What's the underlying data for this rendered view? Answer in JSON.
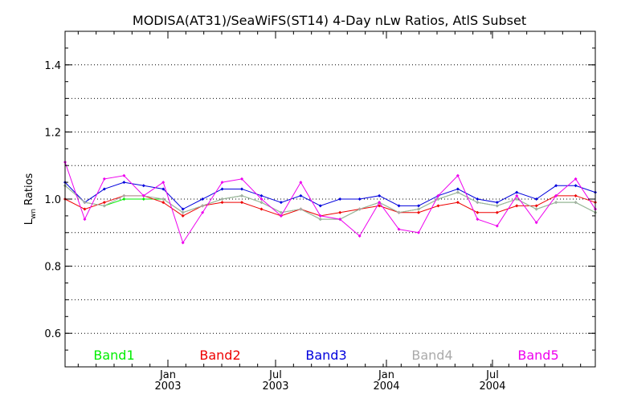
{
  "chart_data": {
    "type": "line",
    "title": "MODISA(AT31)/SeaWiFS(ST14) 4-Day nLw Ratios, AtlS Subset",
    "ylabel_main": "L",
    "ylabel_sub": "wn",
    "ylabel_rest": " Ratios",
    "xlabel": "",
    "ylim": [
      0.5,
      1.5
    ],
    "xlim": [
      0,
      33
    ],
    "grid": "dotted horizontal",
    "y_ticks": [
      "0.6",
      "0.8",
      "1.0",
      "1.2",
      "1.4"
    ],
    "x_ticks": [
      {
        "x": 6.4,
        "month": "Jan",
        "year": "2003"
      },
      {
        "x": 13.1,
        "month": "Jul",
        "year": "2003"
      },
      {
        "x": 20.0,
        "month": "Jan",
        "year": "2004"
      },
      {
        "x": 26.6,
        "month": "Jul",
        "year": "2004"
      }
    ],
    "legend_placement": "bottom",
    "series": [
      {
        "name": "Band1",
        "color": "#00ee00",
        "values": [
          1.04,
          0.99,
          0.98,
          1.0,
          1.0,
          1.0,
          0.96,
          0.98,
          1.0,
          1.01,
          0.99,
          0.96,
          0.97,
          0.94,
          0.94,
          0.97,
          0.99,
          0.96,
          0.97,
          1.0,
          1.02,
          0.99,
          0.98,
          1.0,
          0.97,
          0.99,
          0.99,
          0.96
        ]
      },
      {
        "name": "Band2",
        "color": "#ee0000",
        "values": [
          1.0,
          0.97,
          0.99,
          1.01,
          1.01,
          0.99,
          0.95,
          0.98,
          0.99,
          0.99,
          0.97,
          0.95,
          0.97,
          0.95,
          0.96,
          0.97,
          0.98,
          0.96,
          0.96,
          0.98,
          0.99,
          0.96,
          0.96,
          0.98,
          0.98,
          1.01,
          1.01,
          0.99
        ]
      },
      {
        "name": "Band3",
        "color": "#0000dd",
        "values": [
          1.05,
          0.99,
          1.03,
          1.05,
          1.04,
          1.03,
          0.97,
          1.0,
          1.03,
          1.03,
          1.01,
          0.99,
          1.01,
          0.98,
          1.0,
          1.0,
          1.01,
          0.98,
          0.98,
          1.01,
          1.03,
          1.0,
          0.99,
          1.02,
          1.0,
          1.04,
          1.04,
          1.02
        ]
      },
      {
        "name": "Band4",
        "color": "#aaaaaa",
        "values": [
          1.04,
          0.99,
          0.98,
          1.01,
          1.01,
          1.0,
          0.96,
          0.98,
          1.0,
          1.01,
          0.99,
          0.96,
          0.97,
          0.94,
          0.94,
          0.97,
          0.99,
          0.96,
          0.97,
          1.0,
          1.02,
          0.99,
          0.98,
          1.0,
          0.97,
          0.99,
          0.99,
          0.96
        ]
      },
      {
        "name": "Band5",
        "color": "#ee00ee",
        "values": [
          1.11,
          0.94,
          1.06,
          1.07,
          1.01,
          1.05,
          0.87,
          0.96,
          1.05,
          1.06,
          1.0,
          0.95,
          1.05,
          0.95,
          0.94,
          0.89,
          0.99,
          0.91,
          0.9,
          1.01,
          1.07,
          0.94,
          0.92,
          1.01,
          0.93,
          1.01,
          1.06,
          0.97
        ]
      }
    ]
  }
}
